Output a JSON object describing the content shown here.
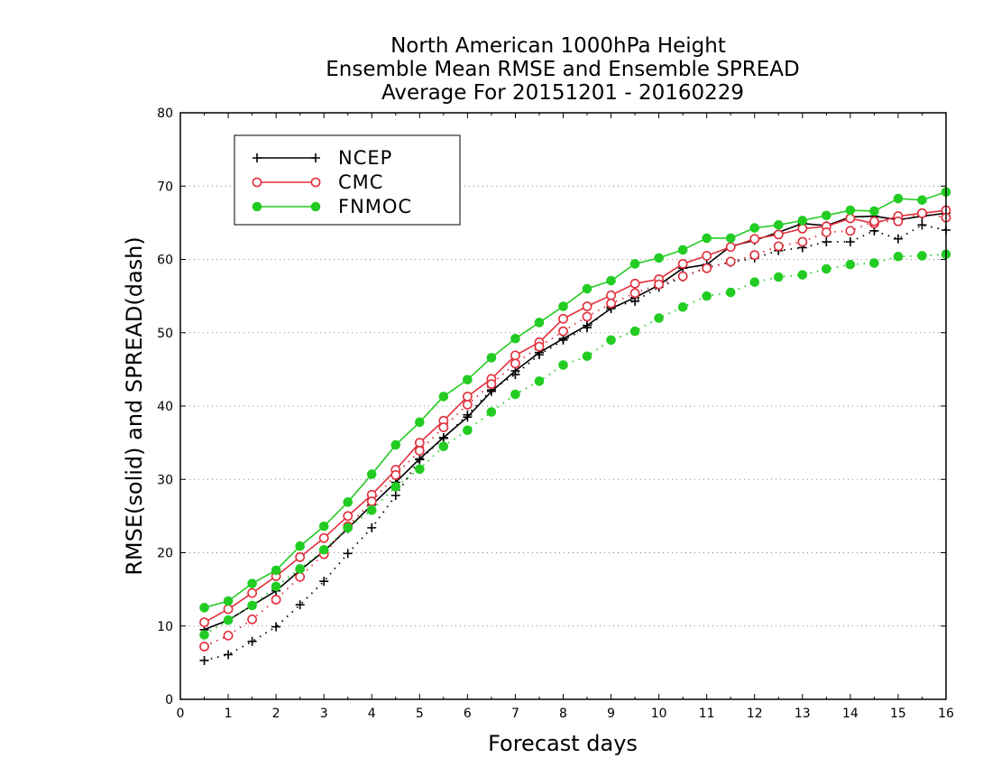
{
  "chart_data": {
    "type": "line",
    "title": [
      "North American 1000hPa Height",
      "Ensemble Mean RMSE and Ensemble SPREAD",
      "Average For 20151201 - 20160229"
    ],
    "xlabel": "Forecast days",
    "ylabel": "RMSE(solid) and SPREAD(dash)",
    "xlim": [
      0,
      16
    ],
    "ylim": [
      0,
      80
    ],
    "xticks": [
      "0",
      "1",
      "2",
      "3",
      "4",
      "5",
      "6",
      "7",
      "8",
      "9",
      "10",
      "11",
      "12",
      "13",
      "14",
      "15",
      "16"
    ],
    "yticks": [
      "0",
      "10",
      "20",
      "30",
      "40",
      "50",
      "60",
      "70",
      "80"
    ],
    "grid": "horizontal dotted",
    "legend_position": "top-left",
    "x": [
      0.5,
      1,
      1.5,
      2,
      2.5,
      3,
      3.5,
      4,
      4.5,
      5,
      5.5,
      6,
      6.5,
      7,
      7.5,
      8,
      8.5,
      9,
      9.5,
      10,
      10.5,
      11,
      11.5,
      12,
      12.5,
      13,
      13.5,
      14,
      14.5,
      15,
      15.5,
      16
    ],
    "series": [
      {
        "name": "NCEP",
        "metric": "RMSE",
        "style": "solid",
        "marker": "plus",
        "color": "#000000",
        "values": [
          9.5,
          10.8,
          12.8,
          14.8,
          17.6,
          20.2,
          23.3,
          26.5,
          29.6,
          32.8,
          35.7,
          38.5,
          42,
          44.8,
          47.3,
          49.2,
          51,
          53.3,
          54.8,
          56.5,
          58.8,
          59.3,
          61.8,
          62.6,
          63.7,
          64.9,
          64.6,
          65.8,
          65.9,
          65.4,
          65.9,
          66.3
        ]
      },
      {
        "name": "NCEP",
        "metric": "SPREAD",
        "style": "dash",
        "marker": "plus",
        "color": "#000000",
        "values": [
          5.3,
          6.1,
          7.9,
          9.9,
          12.9,
          16.1,
          19.9,
          23.4,
          27.8,
          32.7,
          35.6,
          38.8,
          42.2,
          44.3,
          47,
          49,
          50.7,
          53.5,
          54.3,
          56.2,
          57.6,
          58.9,
          59.6,
          60.2,
          61.2,
          61.6,
          62.4,
          62.4,
          63.9,
          62.8,
          64.7,
          64
        ]
      },
      {
        "name": "CMC",
        "metric": "RMSE",
        "style": "solid",
        "marker": "open-circle",
        "color": "#e0303c",
        "values": [
          10.5,
          12.3,
          14.5,
          16.8,
          19.4,
          22,
          25,
          27.9,
          31.3,
          35,
          38,
          41.3,
          43.7,
          46.9,
          48.7,
          51.9,
          53.6,
          55.1,
          56.7,
          57.3,
          59.4,
          60.5,
          61.7,
          62.8,
          63.4,
          64.2,
          64.5,
          65.6,
          64.9,
          65.9,
          66.3,
          66.7
        ]
      },
      {
        "name": "CMC",
        "metric": "SPREAD",
        "style": "dash",
        "marker": "open-circle",
        "color": "#e0303c",
        "values": [
          7.2,
          8.7,
          10.9,
          13.6,
          16.7,
          19.8,
          23.6,
          27,
          30.6,
          33.9,
          37.1,
          40.2,
          43,
          45.8,
          48.1,
          50.2,
          52.2,
          54,
          55.4,
          56.6,
          57.7,
          58.8,
          59.7,
          60.6,
          61.8,
          62.4,
          63.7,
          63.9,
          65.2,
          65.2,
          66.3,
          65.7
        ]
      },
      {
        "name": "FNMOC",
        "metric": "RMSE",
        "style": "solid",
        "marker": "filled-circle",
        "color": "#22cc22",
        "values": [
          12.5,
          13.4,
          15.8,
          17.6,
          20.9,
          23.6,
          26.9,
          30.7,
          34.7,
          37.8,
          41.3,
          43.6,
          46.6,
          49.2,
          51.4,
          53.6,
          56,
          57.1,
          59.4,
          60.2,
          61.3,
          62.9,
          62.9,
          64.3,
          64.7,
          65.3,
          66,
          66.7,
          66.6,
          68.3,
          68.1,
          69.2
        ]
      },
      {
        "name": "FNMOC",
        "metric": "SPREAD",
        "style": "dash",
        "marker": "filled-circle",
        "color": "#22cc22",
        "values": [
          8.8,
          10.8,
          12.8,
          15.4,
          17.8,
          20.4,
          23.4,
          25.8,
          29,
          31.4,
          34.5,
          36.7,
          39.2,
          41.6,
          43.4,
          45.6,
          46.8,
          49,
          50.2,
          52,
          53.5,
          55,
          55.5,
          56.9,
          57.6,
          57.9,
          58.7,
          59.3,
          59.5,
          60.4,
          60.5,
          60.7
        ]
      }
    ],
    "legend": [
      {
        "label": "NCEP",
        "marker": "plus",
        "color": "#000000"
      },
      {
        "label": "CMC",
        "marker": "open-circle",
        "color": "#e0303c"
      },
      {
        "label": "FNMOC",
        "marker": "filled-circle",
        "color": "#22cc22"
      }
    ]
  }
}
